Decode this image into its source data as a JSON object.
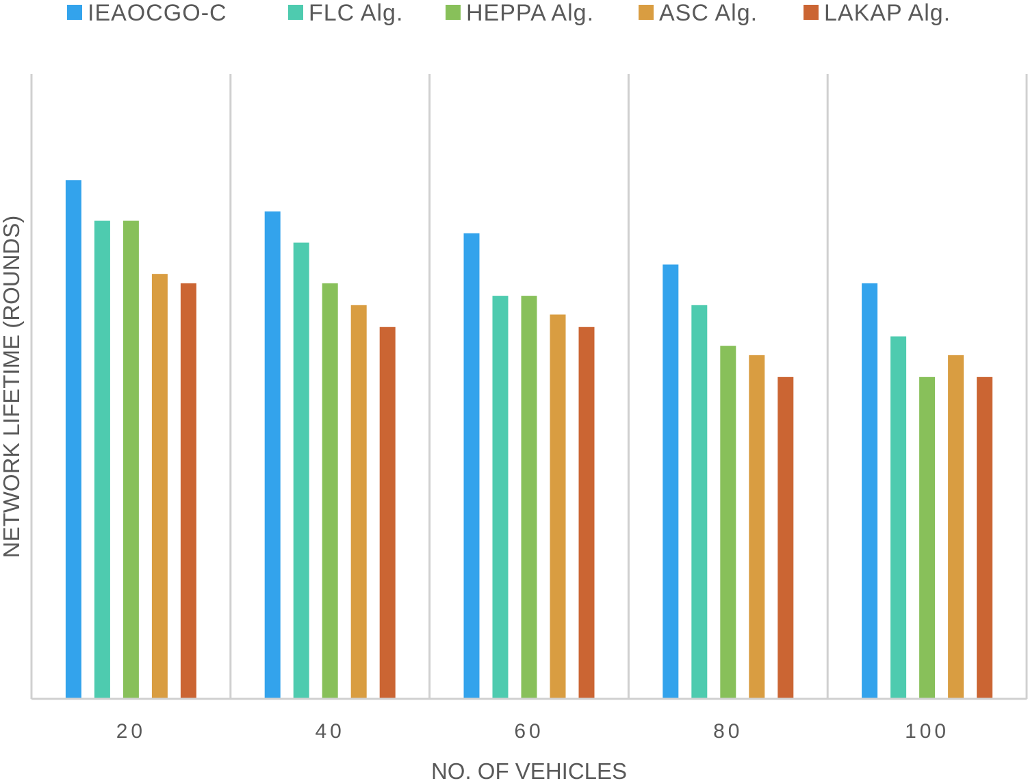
{
  "chart_data": {
    "type": "bar",
    "title": "",
    "xlabel": "NO. OF VEHICLES",
    "ylabel": "NETWORK LIFETIME (ROUNDS)",
    "categories": [
      "20",
      "40",
      "60",
      "80",
      "100"
    ],
    "ylim": [
      0,
      100
    ],
    "grid": "vertical separators between categories",
    "legend_position": "top",
    "series": [
      {
        "name": "IEAOCGO-C",
        "color": "#33A3EC",
        "values": [
          83,
          78,
          74.5,
          69.5,
          66.5
        ]
      },
      {
        "name": "FLC Alg.",
        "color": "#4ECBAF",
        "values": [
          76.5,
          73,
          64.5,
          63,
          58
        ]
      },
      {
        "name": "HEPPA Alg.",
        "color": "#88C05A",
        "values": [
          76.5,
          66.5,
          64.5,
          56.5,
          51.5
        ]
      },
      {
        "name": "ASC Alg.",
        "color": "#D99D41",
        "values": [
          68,
          63,
          61.5,
          55,
          55
        ]
      },
      {
        "name": "LAKAP Alg.",
        "color": "#CB6533",
        "values": [
          66.5,
          59.5,
          59.5,
          51.5,
          51.5
        ]
      }
    ]
  }
}
